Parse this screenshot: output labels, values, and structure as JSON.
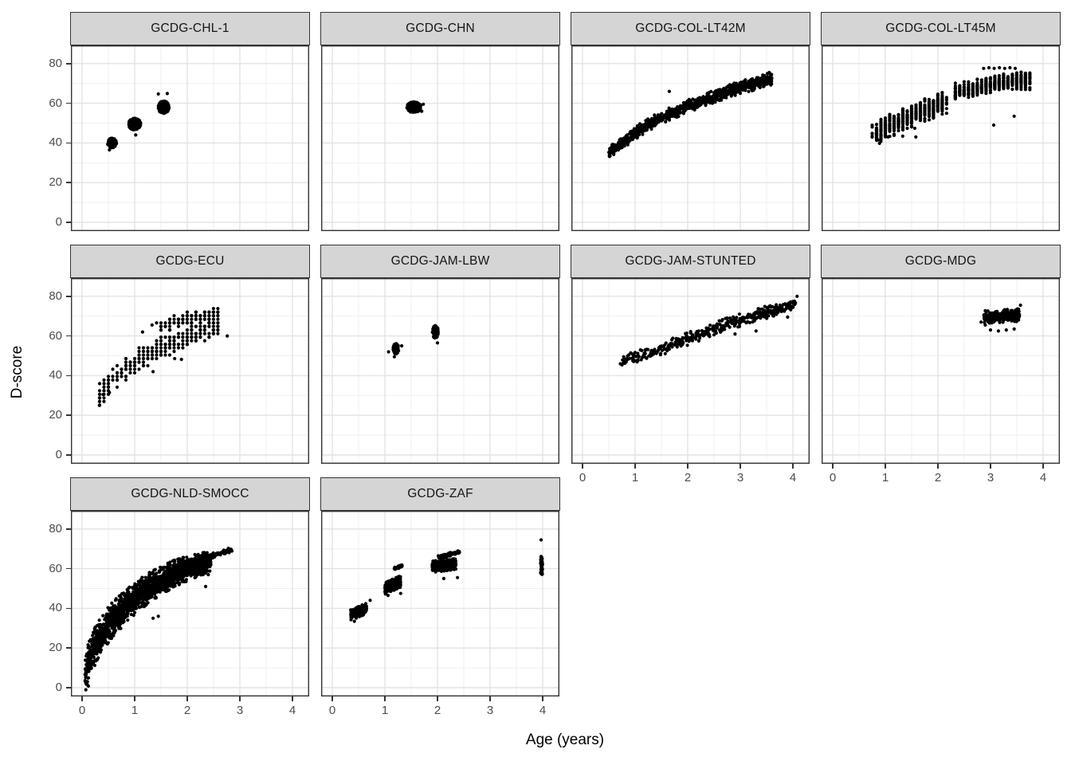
{
  "chart_data": {
    "type": "scatter",
    "title": "",
    "xlabel": "Age (years)",
    "ylabel": "D-score",
    "x_ticks": [
      0,
      1,
      2,
      3,
      4
    ],
    "y_ticks": [
      0,
      20,
      40,
      60,
      80
    ],
    "x_minor": [
      0.5,
      1.5,
      2.5,
      3.5
    ],
    "y_minor": [
      10,
      30,
      50,
      70
    ],
    "x_range": [
      -0.21,
      4.31
    ],
    "y_range": [
      -4.5,
      89
    ],
    "grid": "on",
    "legend_position": "none",
    "point_color": "#000000",
    "point_radius": 2.1,
    "colors": {
      "panel_bg": "#ffffff",
      "panel_border": "#333333",
      "grid_major": "#e3e3e3",
      "grid_minor": "#efefef",
      "strip_fill": "#d5d5d5",
      "strip_border": "#333333",
      "strip_text": "#141414",
      "tick_mark": "#333333",
      "tick_label": "#4d4d4d"
    },
    "facets": [
      {
        "name": "GCDG-CHL-1",
        "row": 0,
        "col": 0,
        "groups": [
          {
            "kind": "blob",
            "cx": 0.57,
            "cy": 40,
            "rx": 0.085,
            "ry": 2.4,
            "n": 140
          },
          {
            "kind": "blob",
            "cx": 1.0,
            "cy": 49.5,
            "rx": 0.115,
            "ry": 3.1,
            "n": 240
          },
          {
            "kind": "blob",
            "cx": 1.55,
            "cy": 58,
            "rx": 0.105,
            "ry": 3.1,
            "n": 240
          },
          {
            "kind": "dots",
            "pts": [
              [
                1.02,
                44
              ],
              [
                1.45,
                64.7
              ],
              [
                1.62,
                64.9
              ],
              [
                0.52,
                36.5
              ]
            ]
          }
        ]
      },
      {
        "name": "GCDG-CHN",
        "row": 0,
        "col": 1,
        "groups": [
          {
            "kind": "blob",
            "cx": 1.55,
            "cy": 58,
            "rx": 0.135,
            "ry": 2.7,
            "n": 320
          },
          {
            "kind": "dots",
            "pts": [
              [
                1.73,
                59.5
              ],
              [
                1.7,
                56
              ]
            ]
          }
        ]
      },
      {
        "name": "GCDG-COL-LT42M",
        "row": 0,
        "col": 2,
        "groups": [
          {
            "kind": "band",
            "cps": [
              [
                0.5,
                35
              ],
              [
                0.7,
                39
              ],
              [
                1.0,
                45
              ],
              [
                1.3,
                50
              ],
              [
                1.6,
                54
              ],
              [
                2.0,
                58.5
              ],
              [
                2.5,
                63.5
              ],
              [
                3.0,
                68
              ],
              [
                3.3,
                70
              ],
              [
                3.6,
                72.5
              ]
            ],
            "spread": 2.6,
            "n": 980
          },
          {
            "kind": "dots",
            "pts": [
              [
                1.65,
                66
              ],
              [
                0.52,
                33.5
              ],
              [
                3.55,
                75.5
              ]
            ]
          }
        ]
      },
      {
        "name": "GCDG-COL-LT45M",
        "row": 0,
        "col": 3,
        "groups": [
          {
            "kind": "band",
            "cps": [
              [
                0.78,
                44
              ],
              [
                1.0,
                47.5
              ],
              [
                1.3,
                51
              ],
              [
                1.6,
                55
              ],
              [
                1.9,
                58
              ],
              [
                2.15,
                60.5
              ]
            ],
            "spread": 4.5,
            "n": 560,
            "round_x": 0.0833
          },
          {
            "kind": "band",
            "cps": [
              [
                2.3,
                65.5
              ],
              [
                2.7,
                68
              ],
              [
                3.1,
                70
              ],
              [
                3.5,
                71.5
              ],
              [
                3.75,
                71
              ]
            ],
            "spread": 3.5,
            "n": 520,
            "round_x": 0.0833
          },
          {
            "kind": "dots",
            "pts": [
              [
                2.87,
                77.6
              ],
              [
                2.97,
                77.9
              ],
              [
                3.07,
                77.6
              ],
              [
                3.17,
                77.9
              ],
              [
                3.27,
                77.6
              ],
              [
                3.37,
                77.9
              ],
              [
                3.47,
                77.6
              ],
              [
                0.89,
                39.8
              ],
              [
                1.05,
                43
              ],
              [
                1.33,
                43.4
              ],
              [
                1.56,
                47.4
              ],
              [
                1.58,
                43
              ],
              [
                3.06,
                49
              ],
              [
                3.45,
                53.5
              ],
              [
                0.86,
                41.5
              ]
            ]
          }
        ]
      },
      {
        "name": "GCDG-ECU",
        "row": 1,
        "col": 0,
        "groups": [
          {
            "kind": "band",
            "cps": [
              [
                0.3,
                27
              ],
              [
                0.45,
                34
              ],
              [
                0.6,
                39
              ],
              [
                0.8,
                43
              ],
              [
                1.0,
                46.5
              ],
              [
                1.3,
                51
              ],
              [
                1.6,
                55
              ],
              [
                2.0,
                59
              ],
              [
                2.3,
                62
              ],
              [
                2.6,
                64.5
              ]
            ],
            "spread": 4.5,
            "n": 300,
            "round_x": 0.0833,
            "round_y": 1.8
          },
          {
            "kind": "band",
            "cps": [
              [
                1.45,
                64
              ],
              [
                1.8,
                67
              ],
              [
                2.2,
                69.5
              ],
              [
                2.6,
                71
              ]
            ],
            "spread": 3,
            "n": 140,
            "round_x": 0.0833,
            "round_y": 1.8
          },
          {
            "kind": "dots",
            "pts": [
              [
                0.33,
                25
              ],
              [
                0.4,
                30.5
              ],
              [
                1.15,
                62
              ],
              [
                1.33,
                65.5
              ],
              [
                1.76,
                48.6
              ],
              [
                1.89,
                48.2
              ],
              [
                2.76,
                60
              ],
              [
                1.35,
                42
              ],
              [
                0.52,
                31.5
              ]
            ]
          }
        ]
      },
      {
        "name": "GCDG-JAM-LBW",
        "row": 1,
        "col": 1,
        "groups": [
          {
            "kind": "blob",
            "cx": 1.21,
            "cy": 53.5,
            "rx": 0.055,
            "ry": 2.7,
            "n": 95
          },
          {
            "kind": "blob",
            "cx": 1.96,
            "cy": 62,
            "rx": 0.055,
            "ry": 3.2,
            "n": 100
          },
          {
            "kind": "dots",
            "pts": [
              [
                1.07,
                52
              ],
              [
                1.32,
                55
              ],
              [
                2.0,
                56.5
              ],
              [
                1.18,
                49.5
              ]
            ]
          }
        ]
      },
      {
        "name": "GCDG-JAM-STUNTED",
        "row": 1,
        "col": 2,
        "groups": [
          {
            "kind": "band",
            "cps": [
              [
                0.75,
                47
              ],
              [
                1.25,
                51
              ],
              [
                1.75,
                56
              ],
              [
                2.25,
                61
              ],
              [
                2.75,
                66
              ],
              [
                3.25,
                70
              ],
              [
                3.75,
                74
              ],
              [
                4.05,
                76.5
              ]
            ],
            "spread": 2.6,
            "n": 430
          },
          {
            "kind": "dots",
            "pts": [
              [
                3.3,
                62.5
              ],
              [
                2.9,
                61
              ],
              [
                3.9,
                69.5
              ],
              [
                4.08,
                80
              ],
              [
                0.72,
                46
              ]
            ]
          }
        ]
      },
      {
        "name": "GCDG-MDG",
        "row": 1,
        "col": 3,
        "groups": [
          {
            "kind": "band",
            "cps": [
              [
                2.87,
                69.5
              ],
              [
                3.2,
                70
              ],
              [
                3.55,
                70.5
              ]
            ],
            "spread": 2.6,
            "n": 310
          },
          {
            "kind": "dots",
            "pts": [
              [
                3.0,
                63
              ],
              [
                3.15,
                62.5
              ],
              [
                3.3,
                63
              ],
              [
                3.45,
                63.5
              ],
              [
                3.57,
                75.5
              ],
              [
                2.9,
                65.5
              ],
              [
                2.82,
                67
              ]
            ]
          }
        ]
      },
      {
        "name": "GCDG-NLD-SMOCC",
        "row": 2,
        "col": 0,
        "groups": [
          {
            "kind": "band",
            "cps": [
              [
                0.05,
                6
              ],
              [
                0.1,
                11
              ],
              [
                0.18,
                17
              ],
              [
                0.3,
                24
              ],
              [
                0.45,
                30
              ],
              [
                0.6,
                35
              ],
              [
                0.8,
                40
              ],
              [
                1.0,
                45
              ],
              [
                1.25,
                50
              ],
              [
                1.5,
                54
              ],
              [
                1.75,
                57.5
              ],
              [
                2.0,
                60
              ],
              [
                2.2,
                62
              ],
              [
                2.45,
                64.5
              ]
            ],
            "spread": 8,
            "spread_end": 4.5,
            "n": 1750
          },
          {
            "kind": "band",
            "cps": [
              [
                2.45,
                66.5
              ],
              [
                2.85,
                69.5
              ]
            ],
            "spread": 1.2,
            "n": 70
          },
          {
            "kind": "dots",
            "pts": [
              [
                2.2,
                57
              ],
              [
                2.3,
                57
              ],
              [
                2.4,
                57
              ],
              [
                2.35,
                51
              ],
              [
                0.07,
                2.5
              ],
              [
                0.1,
                1.5
              ],
              [
                1.35,
                35
              ],
              [
                1.45,
                36
              ],
              [
                0.12,
                0.8
              ]
            ]
          }
        ]
      },
      {
        "name": "GCDG-ZAF",
        "row": 2,
        "col": 1,
        "groups": [
          {
            "kind": "band",
            "cps": [
              [
                0.35,
                36.5
              ],
              [
                0.65,
                40
              ]
            ],
            "spread": 2.2,
            "n": 330
          },
          {
            "kind": "band",
            "cps": [
              [
                1.0,
                50
              ],
              [
                1.3,
                53.5
              ]
            ],
            "spread": 2.4,
            "n": 330
          },
          {
            "kind": "band",
            "cps": [
              [
                1.18,
                60
              ],
              [
                1.33,
                61.5
              ]
            ],
            "spread": 0.7,
            "n": 40
          },
          {
            "kind": "band",
            "cps": [
              [
                1.9,
                61
              ],
              [
                2.35,
                62.5
              ]
            ],
            "spread": 2.4,
            "n": 440
          },
          {
            "kind": "band",
            "cps": [
              [
                2.0,
                65.5
              ],
              [
                2.42,
                68.5
              ]
            ],
            "spread": 0.8,
            "n": 75
          },
          {
            "kind": "vstrip",
            "x": 3.98,
            "jitter": 0.02,
            "y0": 57,
            "y1": 66.5,
            "n": 35
          },
          {
            "kind": "dots",
            "pts": [
              [
                3.97,
                74.5
              ],
              [
                1.06,
                46.5
              ],
              [
                1.3,
                47.5
              ],
              [
                2.12,
                55
              ],
              [
                2.38,
                55.5
              ],
              [
                0.72,
                44
              ],
              [
                0.42,
                33.5
              ]
            ]
          }
        ]
      }
    ]
  }
}
